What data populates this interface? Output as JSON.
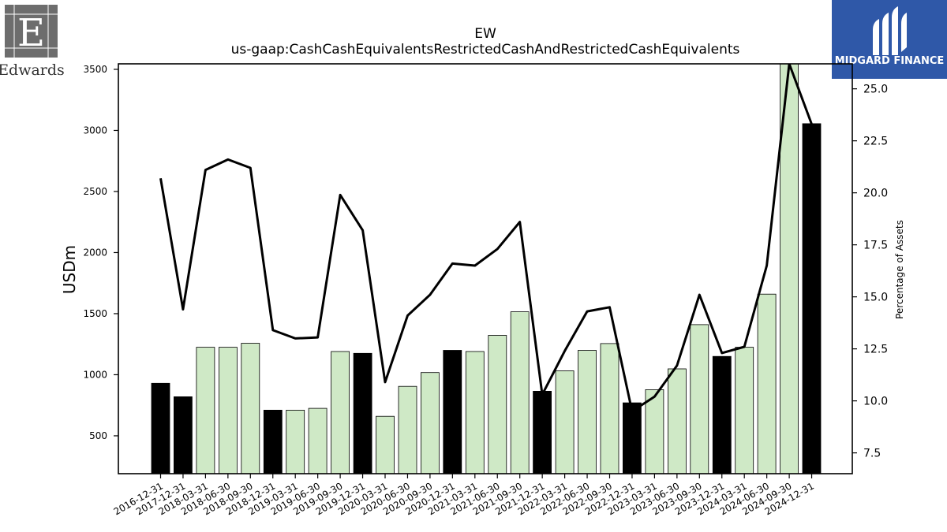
{
  "logos": {
    "left": {
      "name": "Edwards",
      "color": "#6d6d6d"
    },
    "right": {
      "name": "MIDGARD FINANCE",
      "color": "#2f58a8"
    }
  },
  "chart_data": {
    "type": "bar",
    "title": "EW",
    "subtitle": "us-gaap:CashCashEquivalentsRestrictedCashAndRestrictedCashEquivalents",
    "ylabel": "USDm",
    "y2label": "Percentage of Assets",
    "ylim": [
      190,
      3545
    ],
    "y2lim": [
      6.5,
      26.2
    ],
    "yticks": [
      500,
      1000,
      1500,
      2000,
      2500,
      3000,
      3500
    ],
    "y2ticks": [
      7.5,
      10.0,
      12.5,
      15.0,
      17.5,
      20.0,
      22.5,
      25.0
    ],
    "categories": [
      "2016-12-31",
      "2017-12-31",
      "2018-03-31",
      "2018-06-30",
      "2018-09-30",
      "2018-12-31",
      "2019-03-31",
      "2019-06-30",
      "2019-09-30",
      "2019-12-31",
      "2020-03-31",
      "2020-06-30",
      "2020-09-30",
      "2020-12-31",
      "2021-03-31",
      "2021-06-30",
      "2021-09-30",
      "2021-12-31",
      "2022-03-31",
      "2022-06-30",
      "2022-09-30",
      "2022-12-31",
      "2023-03-31",
      "2023-06-30",
      "2023-09-30",
      "2023-12-31",
      "2024-03-31",
      "2024-06-30",
      "2024-09-30",
      "2024-12-31"
    ],
    "series": [
      {
        "kind": "bar",
        "values": [
          930,
          820,
          1225,
          1225,
          1258,
          710,
          710,
          725,
          1190,
          1175,
          660,
          905,
          1018,
          1200,
          1190,
          1322,
          1515,
          865,
          1032,
          1200,
          1255,
          770,
          878,
          1048,
          1410,
          1150,
          1225,
          1660,
          3545,
          3055
        ],
        "annual_flags": [
          true,
          true,
          false,
          false,
          false,
          true,
          false,
          false,
          false,
          true,
          false,
          false,
          false,
          true,
          false,
          false,
          false,
          true,
          false,
          false,
          false,
          true,
          false,
          false,
          false,
          true,
          false,
          false,
          false,
          true
        ],
        "annual_color": "#000000",
        "quarter_color": "#cfe9c6"
      },
      {
        "kind": "line",
        "axis": "right",
        "values": [
          20.7,
          14.4,
          21.1,
          21.6,
          21.2,
          13.4,
          13.0,
          13.05,
          19.9,
          18.2,
          10.9,
          14.1,
          15.1,
          16.6,
          16.5,
          17.3,
          18.6,
          10.3,
          12.4,
          14.3,
          14.5,
          9.5,
          10.2,
          11.7,
          15.1,
          12.3,
          12.6,
          16.5,
          26.2,
          23.3
        ],
        "color": "#000000"
      }
    ],
    "grid": false,
    "legend": "none"
  }
}
